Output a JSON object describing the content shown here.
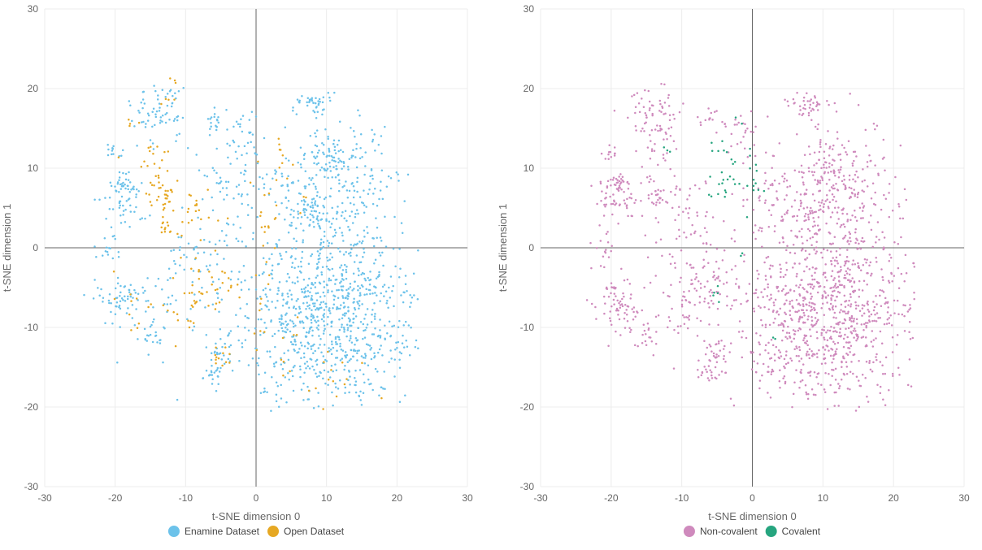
{
  "chart_data": [
    {
      "type": "scatter",
      "title": "",
      "xlabel": "t-SNE dimension 0",
      "ylabel": "t-SNE dimension 1",
      "xlim": [
        -30,
        30
      ],
      "ylim": [
        -30,
        30
      ],
      "xticks": [
        "-30",
        "-20",
        "-10",
        "0",
        "10",
        "20",
        "30"
      ],
      "yticks": [
        "30",
        "20",
        "10",
        "0",
        "-10",
        "-20",
        "-30"
      ],
      "grid": true,
      "legend_position": "bottom-center",
      "series": [
        {
          "name": "Enamine Dataset",
          "color": "#6cc2ea",
          "clusters": [
            {
              "cx": 10,
              "cy": -8,
              "sx": 6.5,
              "sy": 6,
              "n": 950
            },
            {
              "cx": 14,
              "cy": 8,
              "sx": 3,
              "sy": 4,
              "n": 150
            },
            {
              "cx": 10,
              "cy": 11,
              "sx": 2,
              "sy": 2,
              "n": 60
            },
            {
              "cx": 8,
              "cy": 18,
              "sx": 1.5,
              "sy": 0.8,
              "n": 40
            },
            {
              "cx": 8,
              "cy": 5,
              "sx": 2,
              "sy": 1.5,
              "n": 60
            },
            {
              "cx": -14,
              "cy": 17,
              "sx": 2,
              "sy": 2,
              "n": 70
            },
            {
              "cx": -19,
              "cy": 6,
              "sx": 1.5,
              "sy": 1.5,
              "n": 50
            },
            {
              "cx": -19,
              "cy": 8,
              "sx": 1.2,
              "sy": 0.6,
              "n": 25
            },
            {
              "cx": -20,
              "cy": 12,
              "sx": 0.6,
              "sy": 0.6,
              "n": 12
            },
            {
              "cx": -19,
              "cy": -7,
              "sx": 1.8,
              "sy": 1.5,
              "n": 60
            },
            {
              "cx": -15,
              "cy": -11,
              "sx": 1.2,
              "sy": 1,
              "n": 20
            },
            {
              "cx": -6,
              "cy": -16,
              "sx": 1,
              "sy": 0.6,
              "n": 20
            },
            {
              "cx": -5,
              "cy": -13,
              "sx": 1,
              "sy": 1,
              "n": 20
            },
            {
              "cx": -6,
              "cy": 16,
              "sx": 0.8,
              "sy": 0.8,
              "n": 15
            },
            {
              "cx": -3,
              "cy": 9,
              "sx": 2.5,
              "sy": 3,
              "n": 60
            },
            {
              "cx": -8,
              "cy": 0,
              "sx": 3,
              "sy": 3,
              "n": 30
            },
            {
              "cx": -2,
              "cy": 15,
              "sx": 1.5,
              "sy": 1.5,
              "n": 25
            },
            {
              "cx": -10,
              "cy": -5,
              "sx": 4,
              "sy": 4,
              "n": 50
            },
            {
              "cx": 3,
              "cy": 8,
              "sx": 2,
              "sy": 3,
              "n": 30
            },
            {
              "cx": -21,
              "cy": 0,
              "sx": 1,
              "sy": 1,
              "n": 15
            }
          ]
        },
        {
          "name": "Open Dataset",
          "color": "#e6a823",
          "clusters": [
            {
              "cx": -13,
              "cy": 6,
              "sx": 1,
              "sy": 1.2,
              "n": 30
            },
            {
              "cx": -13,
              "cy": 2.5,
              "sx": 0.6,
              "sy": 0.5,
              "n": 10
            },
            {
              "cx": -9,
              "cy": 5,
              "sx": 1.5,
              "sy": 1.5,
              "n": 20
            },
            {
              "cx": -6,
              "cy": -4,
              "sx": 2,
              "sy": 2,
              "n": 30
            },
            {
              "cx": -10,
              "cy": -8,
              "sx": 1.5,
              "sy": 2,
              "n": 20
            },
            {
              "cx": -5,
              "cy": -14,
              "sx": 1,
              "sy": 0.8,
              "n": 12
            },
            {
              "cx": -17,
              "cy": -7,
              "sx": 2,
              "sy": 2,
              "n": 12
            },
            {
              "cx": -14,
              "cy": 11,
              "sx": 1.5,
              "sy": 2,
              "n": 20
            },
            {
              "cx": -18,
              "cy": 16,
              "sx": 0.4,
              "sy": 0.4,
              "n": 4
            },
            {
              "cx": -12,
              "cy": 19,
              "sx": 0.8,
              "sy": 1,
              "n": 5
            },
            {
              "cx": 2,
              "cy": 5,
              "sx": 2.5,
              "sy": 3,
              "n": 20
            },
            {
              "cx": 4,
              "cy": 11,
              "sx": 1,
              "sy": 1.5,
              "n": 10
            },
            {
              "cx": 10,
              "cy": -15,
              "sx": 4,
              "sy": 3,
              "n": 20
            },
            {
              "cx": 1,
              "cy": -4,
              "sx": 1,
              "sy": 1.5,
              "n": 6
            },
            {
              "cx": 2,
              "cy": -11,
              "sx": 1.5,
              "sy": 2,
              "n": 8
            },
            {
              "cx": -12,
              "cy": 21,
              "sx": 0.3,
              "sy": 0.3,
              "n": 3
            }
          ]
        }
      ]
    },
    {
      "type": "scatter",
      "title": "",
      "xlabel": "t-SNE dimension 0",
      "ylabel": "t-SNE dimension 1",
      "xlim": [
        -30,
        30
      ],
      "ylim": [
        -30,
        30
      ],
      "xticks": [
        "-30",
        "-20",
        "-10",
        "0",
        "10",
        "20",
        "30"
      ],
      "yticks": [
        "30",
        "20",
        "10",
        "0",
        "-10",
        "-20",
        "-30"
      ],
      "grid": true,
      "legend_position": "bottom-center",
      "series": [
        {
          "name": "Non-covalent",
          "color": "#cf8abd",
          "clusters": [
            {
              "cx": 10,
              "cy": -8,
              "sx": 6.5,
              "sy": 6,
              "n": 950
            },
            {
              "cx": 14,
              "cy": 8,
              "sx": 3,
              "sy": 4,
              "n": 150
            },
            {
              "cx": 10,
              "cy": 11,
              "sx": 2,
              "sy": 2,
              "n": 60
            },
            {
              "cx": 8,
              "cy": 18,
              "sx": 1.5,
              "sy": 0.8,
              "n": 40
            },
            {
              "cx": 8,
              "cy": 5,
              "sx": 2,
              "sy": 1.5,
              "n": 60
            },
            {
              "cx": -14,
              "cy": 17,
              "sx": 2,
              "sy": 2,
              "n": 70
            },
            {
              "cx": -19,
              "cy": 6,
              "sx": 1.5,
              "sy": 1.5,
              "n": 50
            },
            {
              "cx": -19,
              "cy": 8,
              "sx": 1.2,
              "sy": 0.6,
              "n": 25
            },
            {
              "cx": -20,
              "cy": 12,
              "sx": 0.6,
              "sy": 0.6,
              "n": 12
            },
            {
              "cx": -19,
              "cy": -7,
              "sx": 1.8,
              "sy": 1.5,
              "n": 60
            },
            {
              "cx": -15,
              "cy": -11,
              "sx": 1.2,
              "sy": 1,
              "n": 20
            },
            {
              "cx": -6,
              "cy": -16,
              "sx": 1,
              "sy": 0.6,
              "n": 20
            },
            {
              "cx": -5,
              "cy": -13,
              "sx": 1,
              "sy": 1,
              "n": 20
            },
            {
              "cx": -6,
              "cy": 16,
              "sx": 0.8,
              "sy": 0.8,
              "n": 15
            },
            {
              "cx": -8,
              "cy": 0,
              "sx": 3,
              "sy": 3,
              "n": 30
            },
            {
              "cx": -2,
              "cy": 15,
              "sx": 1.5,
              "sy": 1.5,
              "n": 25
            },
            {
              "cx": -10,
              "cy": -5,
              "sx": 4,
              "sy": 4,
              "n": 50
            },
            {
              "cx": 3,
              "cy": 8,
              "sx": 2,
              "sy": 3,
              "n": 30
            },
            {
              "cx": -21,
              "cy": 0,
              "sx": 1,
              "sy": 1,
              "n": 15
            },
            {
              "cx": -13,
              "cy": 6,
              "sx": 1,
              "sy": 1.2,
              "n": 30
            },
            {
              "cx": -9,
              "cy": 5,
              "sx": 1.5,
              "sy": 1.5,
              "n": 20
            },
            {
              "cx": -6,
              "cy": -4,
              "sx": 2,
              "sy": 2,
              "n": 30
            },
            {
              "cx": -10,
              "cy": -8,
              "sx": 1.5,
              "sy": 2,
              "n": 20
            },
            {
              "cx": -17,
              "cy": -7,
              "sx": 2,
              "sy": 2,
              "n": 12
            },
            {
              "cx": -14,
              "cy": 11,
              "sx": 1.5,
              "sy": 2,
              "n": 20
            },
            {
              "cx": 2,
              "cy": 5,
              "sx": 2.5,
              "sy": 3,
              "n": 20
            },
            {
              "cx": 10,
              "cy": -15,
              "sx": 4,
              "sy": 3,
              "n": 20
            }
          ]
        },
        {
          "name": "Covalent",
          "color": "#26a57f",
          "clusters": [
            {
              "cx": -3,
              "cy": 8.5,
              "sx": 1.5,
              "sy": 2,
              "n": 25
            },
            {
              "cx": 0,
              "cy": 8,
              "sx": 0.8,
              "sy": 1,
              "n": 8
            },
            {
              "cx": -4,
              "cy": 12,
              "sx": 0.8,
              "sy": 0.5,
              "n": 5
            },
            {
              "cx": -12,
              "cy": 12.5,
              "sx": 0.3,
              "sy": 0.3,
              "n": 3
            },
            {
              "cx": -5,
              "cy": -6,
              "sx": 0.4,
              "sy": 0.8,
              "n": 5
            },
            {
              "cx": -2,
              "cy": 16,
              "sx": 0.3,
              "sy": 0.3,
              "n": 2
            },
            {
              "cx": -1,
              "cy": -1,
              "sx": 0.3,
              "sy": 0.3,
              "n": 2
            },
            {
              "cx": 3,
              "cy": -11,
              "sx": 0.3,
              "sy": 0.3,
              "n": 2
            }
          ]
        }
      ]
    }
  ]
}
